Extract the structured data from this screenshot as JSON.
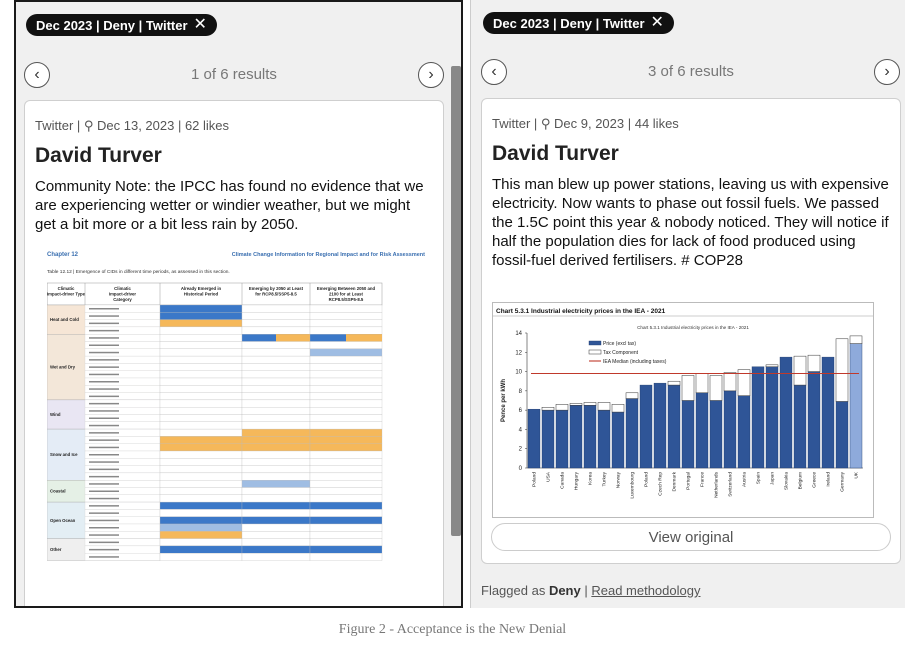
{
  "left": {
    "pill": "Dec 2023 | Deny | Twitter",
    "prev_icon": "chevron-left",
    "next_icon": "chevron-right",
    "result_count": "1 of 6 results",
    "meta": "Twitter | ⚲ Dec 13, 2023 | 62 likes",
    "author": "David Turver",
    "text": "Community Note: the IPCC has found no evidence that we are experiencing wetter or windier weather, but we might get a bit more or a bit less rain by 2050.",
    "table": {
      "chapter": "Chapter 12",
      "header_title": "Climate Change Information for Regional Impact and for Risk Assessment",
      "caption": "Table 12.12 | Emergence of CIDs in different time periods, as assessed in this section.",
      "col1": "Climatic Impact-driver Type",
      "col2": "Climatic Impact-driver Category",
      "col3": "Already Emerged in Historical Period",
      "col4": "Emerging by 2050 at Least for RCP8.5/SSP5-8.5",
      "col5": "Emerging Between 2050 and 2100 for at Least RCP8.5/SSP5-8.5",
      "groups": [
        "Heat and Cold",
        "Wet and Dry",
        "Wind",
        "Snow and Ice",
        "Coastal",
        "Open Ocean",
        "Other"
      ]
    }
  },
  "right": {
    "pill": "Dec 2023 | Deny | Twitter",
    "prev_icon": "chevron-left",
    "next_icon": "chevron-right",
    "result_count": "3 of 6 results",
    "meta": "Twitter | ⚲ Dec 9, 2023 | 44 likes",
    "author": "David Turver",
    "text": "This man blew up power stations, leaving us with expensive electricity. Now wants to phase out fossil fuels. We passed the 1.5C point this year & nobody noticed. They will notice if half the population dies for lack of food produced using fossil-fuel derived fertilisers. # COP28",
    "view_original": "View original",
    "flagged_prefix": "Flagged as ",
    "flagged_label": "Deny",
    "flagged_sep": " | ",
    "methodology": "Read methodology"
  },
  "caption": "Figure 2 - Acceptance is the New Denial",
  "chart_data": {
    "type": "bar",
    "title": "Chart 5.3.1 Industrial electricity prices in the IEA - 2021",
    "inner_title": "Chart 5.3.1 Industrial electricity prices in the IEA - 2021",
    "ylabel": "Pence per kWh",
    "ylim": [
      0,
      14
    ],
    "yticks": [
      0,
      2,
      4,
      6,
      8,
      10,
      12,
      14
    ],
    "legend": [
      "Price (excl tax)",
      "Tax Component",
      "IEA Median (including taxes)"
    ],
    "median": 9.8,
    "categories": [
      "Poland",
      "USA",
      "Canada",
      "Hungary",
      "Korea",
      "Turkey",
      "Norway",
      "Luxembourg",
      "Poland",
      "Czech Rep",
      "Denmark",
      "Portugal",
      "France",
      "Netherlands",
      "Switzerland",
      "Austria",
      "Spain",
      "Japan",
      "Slovakia",
      "Belgium",
      "Greece",
      "Ireland",
      "Germany",
      "UK"
    ],
    "series": [
      {
        "name": "Price (excl tax)",
        "values": [
          6.1,
          6.0,
          6.0,
          6.5,
          6.5,
          6.0,
          5.8,
          7.2,
          8.6,
          8.8,
          8.6,
          7.0,
          7.8,
          7.0,
          8.0,
          7.5,
          10.5,
          10.5,
          11.5,
          8.6,
          10.0,
          11.5,
          6.9,
          12.9
        ]
      },
      {
        "name": "Tax Component",
        "values": [
          0,
          0.3,
          0.6,
          0.2,
          0.3,
          0.8,
          0.8,
          0.6,
          0,
          0,
          0.4,
          2.6,
          2.0,
          2.6,
          1.9,
          2.7,
          0,
          0.2,
          0,
          3.0,
          1.7,
          0,
          6.5,
          0.8
        ]
      }
    ],
    "colors": {
      "price": "#2f5597",
      "tax": "#ffffff",
      "median": "#c0392b",
      "uk": "#8eaadb"
    }
  }
}
